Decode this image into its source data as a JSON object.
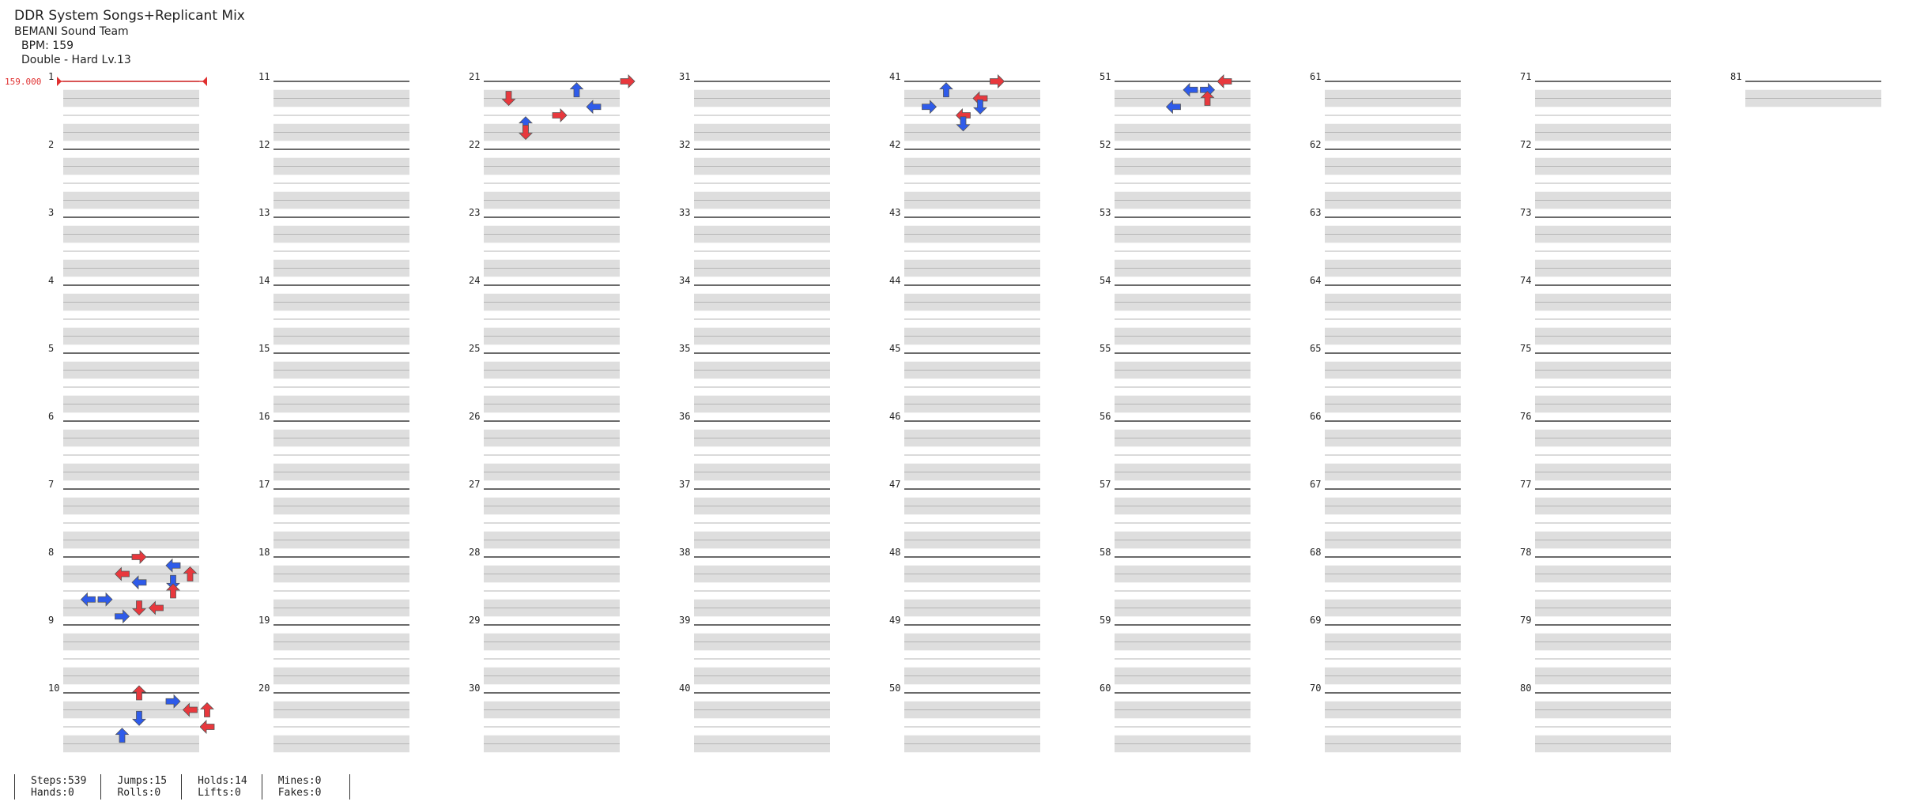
{
  "header": {
    "title": "DDR System Songs+Replicant Mix",
    "artist": "BEMANI Sound Team",
    "bpm_text": "BPM: 159",
    "difficulty_text": "Double - Hard Lv.13"
  },
  "chart": {
    "bpm_marker": "159.000",
    "measures": [
      "1",
      "2",
      "3",
      "4",
      "5",
      "6",
      "7",
      "8",
      "9",
      "10",
      "11",
      "12",
      "13",
      "14",
      "15",
      "16",
      "17",
      "18",
      "19",
      "20",
      "21",
      "22",
      "23",
      "24",
      "25",
      "26",
      "27",
      "28",
      "29",
      "30",
      "31",
      "32",
      "33",
      "34",
      "35",
      "36",
      "37",
      "38",
      "39",
      "40",
      "41",
      "42",
      "43",
      "44",
      "45",
      "46",
      "47",
      "48",
      "49",
      "50",
      "51",
      "52",
      "53",
      "54",
      "55",
      "56",
      "57",
      "58",
      "59",
      "60",
      "61",
      "62",
      "63",
      "64",
      "65",
      "66",
      "67",
      "68",
      "69",
      "70",
      "71",
      "72",
      "73",
      "74",
      "75",
      "76",
      "77",
      "78",
      "79",
      "80",
      "81"
    ],
    "colors": {
      "quarter": "#e8383d",
      "eighth": "#2e5bea",
      "sixteenth": "#f6e13a",
      "hold": "#7ed37e"
    },
    "notes": [
      [
        7,
        0,
        "R",
        4
      ],
      [
        7,
        1,
        "L",
        6
      ],
      [
        7,
        2,
        "U",
        7
      ],
      [
        7,
        2,
        "L",
        3
      ],
      [
        7,
        3,
        "D",
        6
      ],
      [
        7,
        3,
        "L",
        4
      ],
      [
        7,
        4,
        "U",
        6
      ],
      [
        7,
        5,
        "R",
        2
      ],
      [
        7,
        5,
        "L",
        1
      ],
      [
        7,
        6,
        "D",
        4
      ],
      [
        7,
        6,
        "L",
        5
      ],
      [
        7,
        7,
        "R",
        3
      ],
      [
        9,
        0,
        "U",
        4
      ],
      [
        9,
        1,
        "R",
        6
      ],
      [
        9,
        2,
        "L",
        7
      ],
      [
        9,
        2,
        "U",
        8
      ],
      [
        9,
        3,
        "D",
        4
      ],
      [
        9,
        4,
        "L",
        8
      ],
      [
        9,
        5,
        "U",
        3
      ],
      [
        20,
        0,
        "R",
        8
      ],
      [
        20,
        1,
        "U",
        5
      ],
      [
        20,
        2,
        "D",
        1
      ],
      [
        20,
        3,
        "L",
        6
      ],
      [
        20,
        4,
        "R",
        4
      ],
      [
        20,
        5,
        "U",
        2
      ],
      [
        20,
        6,
        "D",
        2
      ],
      [
        40,
        0,
        "R",
        5
      ],
      [
        40,
        1,
        "U",
        2
      ],
      [
        40,
        2,
        "L",
        4
      ],
      [
        40,
        3,
        "D",
        4
      ],
      [
        40,
        3,
        "R",
        1
      ],
      [
        40,
        4,
        "L",
        3
      ],
      [
        40,
        5,
        "D",
        3
      ],
      [
        50,
        0,
        "L",
        6
      ],
      [
        50,
        1,
        "L",
        4
      ],
      [
        50,
        1,
        "R",
        5
      ],
      [
        50,
        2,
        "U",
        5
      ],
      [
        50,
        3,
        "L",
        3
      ]
    ]
  },
  "stats": {
    "steps": "Steps:539",
    "hands": "Hands:0",
    "jumps": "Jumps:15",
    "rolls": "Rolls:0",
    "holds": "Holds:14",
    "lifts": "Lifts:0",
    "mines": "Mines:0",
    "fakes": "Fakes:0"
  }
}
